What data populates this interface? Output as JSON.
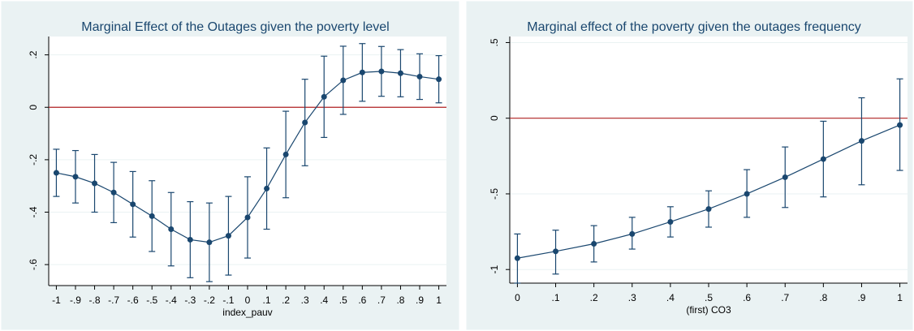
{
  "chart_data": [
    {
      "type": "line",
      "title": "Marginal Effect of the Outages given the poverty level",
      "x_label": "index_pauv",
      "x": [
        -1,
        -0.9,
        -0.8,
        -0.7,
        -0.6,
        -0.5,
        -0.4,
        -0.3,
        -0.2,
        -0.1,
        0,
        0.1,
        0.2,
        0.3,
        0.4,
        0.5,
        0.6,
        0.7,
        0.8,
        0.9,
        1
      ],
      "series": [
        {
          "color": "#1a476f",
          "values": [
            -0.25,
            -0.265,
            -0.29,
            -0.325,
            -0.37,
            -0.415,
            -0.465,
            -0.505,
            -0.515,
            -0.49,
            -0.42,
            -0.31,
            -0.18,
            -0.058,
            0.04,
            0.103,
            0.133,
            0.137,
            0.13,
            0.117,
            0.107
          ],
          "lower": [
            -0.34,
            -0.365,
            -0.4,
            -0.44,
            -0.495,
            -0.55,
            -0.605,
            -0.65,
            -0.665,
            -0.64,
            -0.575,
            -0.465,
            -0.345,
            -0.223,
            -0.115,
            -0.027,
            0.023,
            0.042,
            0.04,
            0.03,
            0.017
          ],
          "upper": [
            -0.16,
            -0.165,
            -0.18,
            -0.21,
            -0.245,
            -0.28,
            -0.325,
            -0.36,
            -0.365,
            -0.34,
            -0.265,
            -0.155,
            -0.015,
            0.107,
            0.195,
            0.233,
            0.243,
            0.232,
            0.22,
            0.204,
            0.197
          ]
        }
      ],
      "refline": 0,
      "refline_color": "#b22222",
      "grid": true,
      "xlim": [
        -1.04,
        1.04
      ],
      "ylim": [
        -0.68,
        0.27
      ],
      "xticks": [
        {
          "value": -1,
          "label": "-1"
        },
        {
          "value": -0.9,
          "label": "-.9"
        },
        {
          "value": -0.8,
          "label": "-.8"
        },
        {
          "value": -0.7,
          "label": "-.7"
        },
        {
          "value": -0.6,
          "label": "-.6"
        },
        {
          "value": -0.5,
          "label": "-.5"
        },
        {
          "value": -0.4,
          "label": "-.4"
        },
        {
          "value": -0.3,
          "label": "-.3"
        },
        {
          "value": -0.2,
          "label": "-.2"
        },
        {
          "value": -0.1,
          "label": "-.1"
        },
        0,
        {
          "value": 0.1,
          "label": ".1"
        },
        {
          "value": 0.2,
          "label": ".2"
        },
        {
          "value": 0.3,
          "label": ".3"
        },
        {
          "value": 0.4,
          "label": ".4"
        },
        {
          "value": 0.5,
          "label": ".5"
        },
        {
          "value": 0.6,
          "label": ".6"
        },
        {
          "value": 0.7,
          "label": ".7"
        },
        {
          "value": 0.8,
          "label": ".8"
        },
        {
          "value": 0.9,
          "label": ".9"
        },
        1
      ],
      "yticks": [
        {
          "value": 0.2,
          "label": ".2"
        },
        0,
        {
          "value": -0.2,
          "label": "-.2"
        },
        {
          "value": -0.4,
          "label": "-.4"
        },
        {
          "value": -0.6,
          "label": "-.6"
        }
      ]
    },
    {
      "type": "line",
      "title": "Marginal effect of the poverty given the outages frequency",
      "x_label": "(first) CO3",
      "x": [
        0,
        0.1,
        0.2,
        0.3,
        0.4,
        0.5,
        0.6,
        0.7,
        0.8,
        0.9,
        1
      ],
      "series": [
        {
          "color": "#1a476f",
          "values": [
            -0.925,
            -0.88,
            -0.83,
            -0.765,
            -0.685,
            -0.6,
            -0.5,
            -0.39,
            -0.27,
            -0.15,
            -0.045
          ],
          "lower": [
            -1.09,
            -1.03,
            -0.95,
            -0.865,
            -0.785,
            -0.72,
            -0.655,
            -0.59,
            -0.52,
            -0.44,
            -0.345
          ],
          "upper": [
            -0.765,
            -0.74,
            -0.71,
            -0.655,
            -0.585,
            -0.48,
            -0.34,
            -0.19,
            -0.02,
            0.135,
            0.26
          ]
        }
      ],
      "refline": 0,
      "refline_color": "#b22222",
      "grid": true,
      "xlim": [
        -0.02,
        1.02
      ],
      "ylim": [
        -1.09,
        0.54
      ],
      "xticks": [
        0,
        {
          "value": 0.1,
          "label": ".1"
        },
        {
          "value": 0.2,
          "label": ".2"
        },
        {
          "value": 0.3,
          "label": ".3"
        },
        {
          "value": 0.4,
          "label": ".4"
        },
        {
          "value": 0.5,
          "label": ".5"
        },
        {
          "value": 0.6,
          "label": ".6"
        },
        {
          "value": 0.7,
          "label": ".7"
        },
        {
          "value": 0.8,
          "label": ".8"
        },
        {
          "value": 0.9,
          "label": ".9"
        },
        1
      ],
      "yticks": [
        {
          "value": 0.5,
          "label": ".5"
        },
        0,
        {
          "value": -0.5,
          "label": "-.5"
        },
        -1
      ]
    }
  ]
}
